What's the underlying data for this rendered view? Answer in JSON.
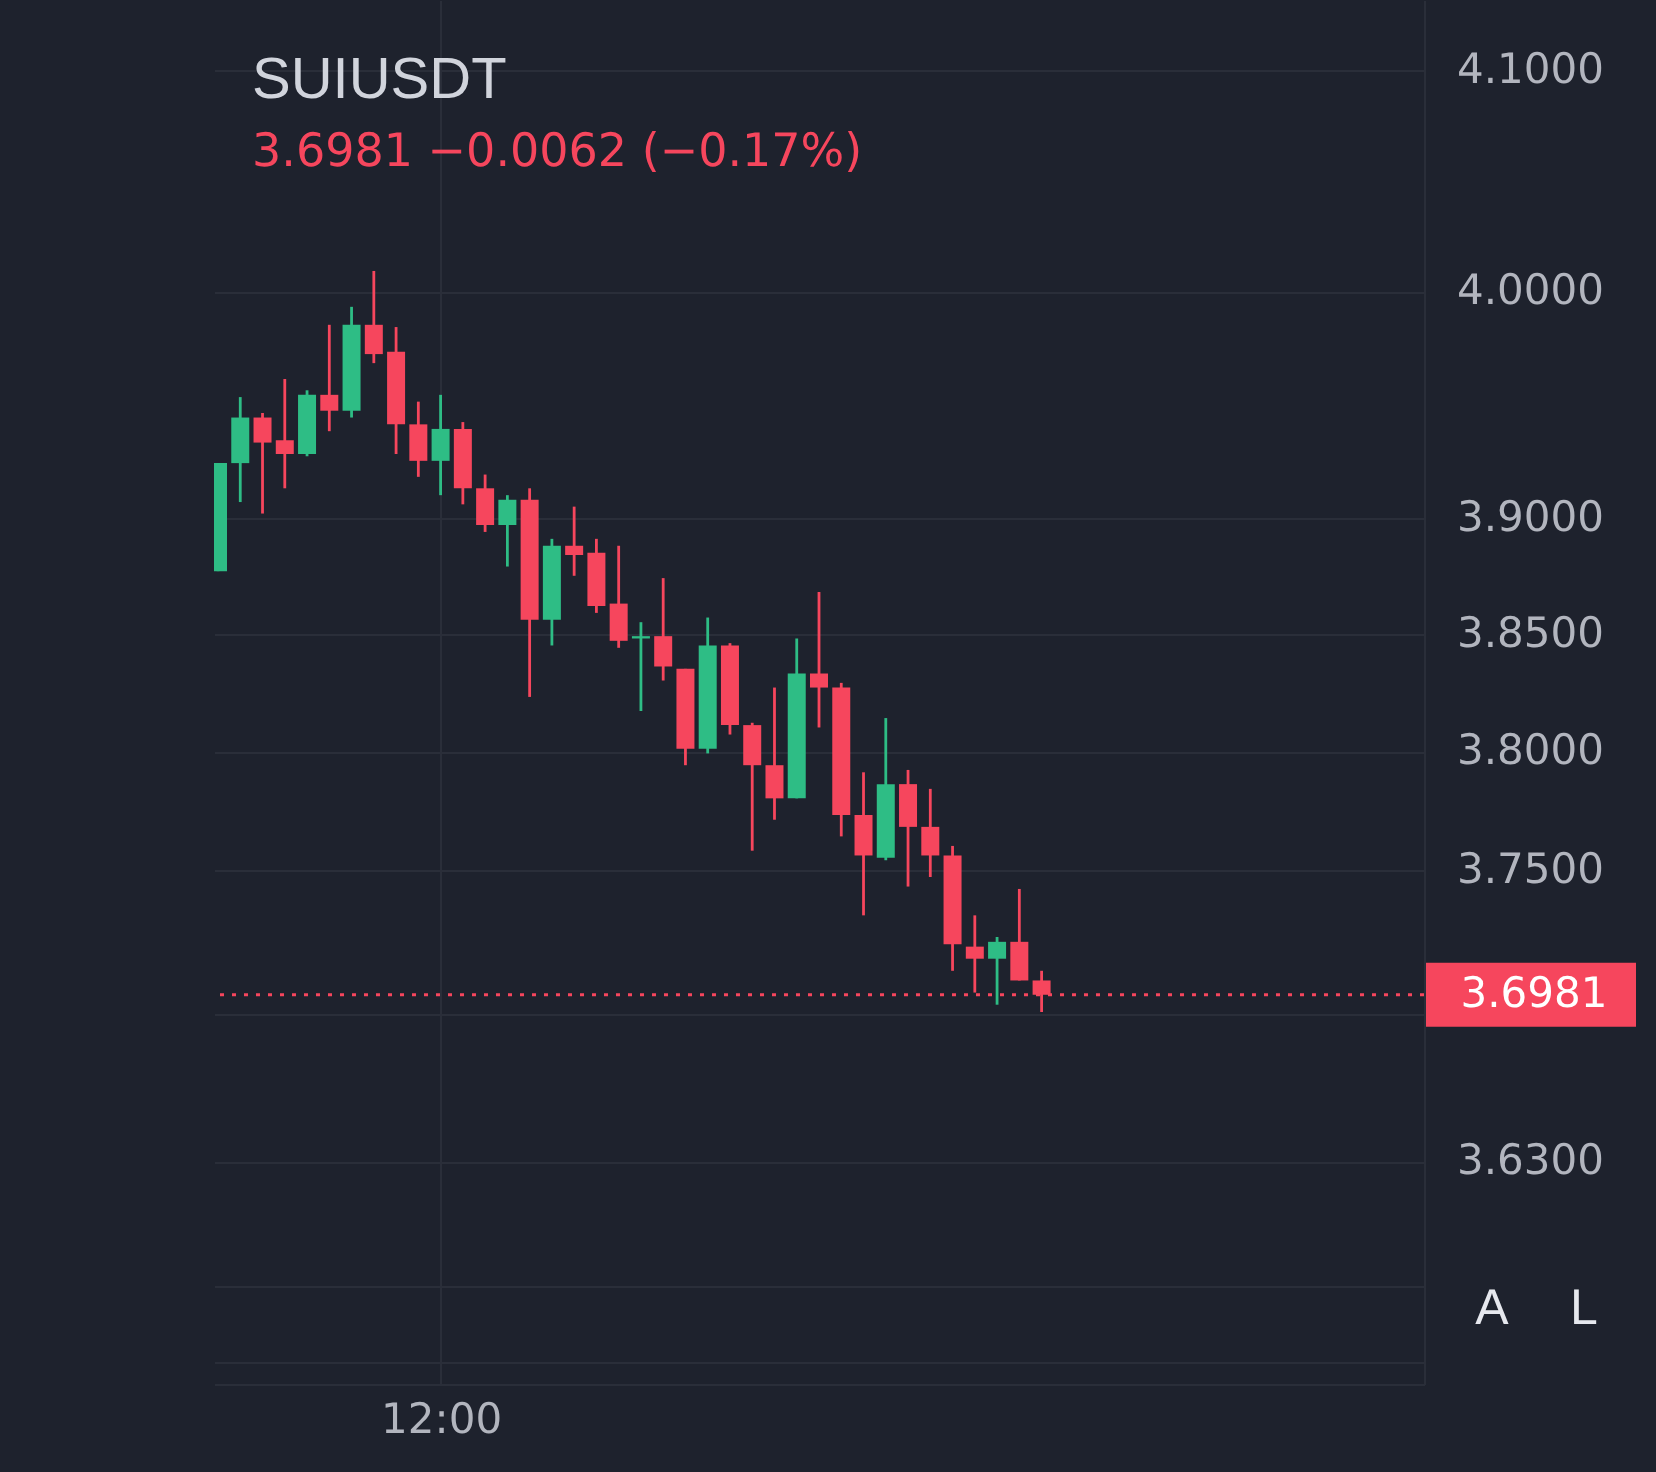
{
  "chart_data": {
    "type": "candlestick",
    "title": "SUIUSDT",
    "subtitle": "3.6981  −0.0062 (−0.17%)",
    "categories": [
      null,
      null,
      null,
      null,
      null,
      null,
      null,
      null,
      null,
      null,
      "12:00",
      null,
      null,
      null,
      null,
      null,
      null,
      null,
      null,
      null,
      null,
      null,
      null,
      null,
      null,
      null,
      null,
      null,
      null,
      null,
      null,
      null,
      null,
      null,
      null,
      null,
      null,
      null,
      null,
      null,
      null,
      null,
      null,
      null,
      null,
      null,
      null,
      null,
      null,
      null,
      null,
      null,
      null,
      null,
      null
    ],
    "ohlc": [
      [
        3.877,
        3.924,
        3.877,
        3.924
      ],
      [
        3.924,
        3.953,
        3.907,
        3.944
      ],
      [
        3.944,
        3.946,
        3.902,
        3.933
      ],
      [
        3.934,
        3.961,
        3.913,
        3.928
      ],
      [
        3.928,
        3.956,
        3.927,
        3.954
      ],
      [
        3.954,
        3.985,
        3.938,
        3.947
      ],
      [
        3.947,
        3.993,
        3.944,
        3.985
      ],
      [
        3.985,
        4.009,
        3.968,
        3.972
      ],
      [
        3.973,
        3.984,
        3.928,
        3.941
      ],
      [
        3.941,
        3.951,
        3.918,
        3.925
      ],
      [
        3.925,
        3.954,
        3.91,
        3.939
      ],
      [
        3.939,
        3.942,
        3.906,
        3.913
      ],
      [
        3.913,
        3.919,
        3.894,
        3.897
      ],
      [
        3.897,
        3.91,
        3.879,
        3.908
      ],
      [
        3.908,
        3.913,
        3.823,
        3.856
      ],
      [
        3.856,
        3.891,
        3.845,
        3.888
      ],
      [
        3.888,
        3.905,
        3.875,
        3.884
      ],
      [
        3.885,
        3.891,
        3.859,
        3.862
      ],
      [
        3.863,
        3.888,
        3.844,
        3.847
      ],
      [
        3.848,
        3.855,
        3.817,
        3.849
      ],
      [
        3.849,
        3.874,
        3.83,
        3.836
      ],
      [
        3.835,
        3.835,
        3.794,
        3.801
      ],
      [
        3.801,
        3.857,
        3.799,
        3.845
      ],
      [
        3.845,
        3.846,
        3.807,
        3.811
      ],
      [
        3.811,
        3.812,
        3.758,
        3.794
      ],
      [
        3.794,
        3.827,
        3.771,
        3.78
      ],
      [
        3.78,
        3.848,
        3.78,
        3.833
      ],
      [
        3.833,
        3.868,
        3.81,
        3.827
      ],
      [
        3.827,
        3.829,
        3.764,
        3.773
      ],
      [
        3.773,
        3.791,
        3.731,
        3.756
      ],
      [
        3.755,
        3.814,
        3.754,
        3.786
      ],
      [
        3.786,
        3.792,
        3.743,
        3.768
      ],
      [
        3.768,
        3.784,
        3.747,
        3.756
      ],
      [
        3.756,
        3.76,
        3.708,
        3.719
      ],
      [
        3.718,
        3.731,
        3.699,
        3.713
      ],
      [
        3.713,
        3.722,
        3.694,
        3.72
      ],
      [
        3.72,
        3.742,
        3.704,
        3.704
      ],
      [
        3.704,
        3.708,
        3.691,
        3.6981
      ],
      null,
      null,
      null,
      null,
      null,
      null,
      null,
      null,
      null,
      null,
      null,
      null,
      null,
      null,
      null,
      null,
      null
    ],
    "colors": [
      "#2ebd85",
      "#2ebd85",
      "#f6465d",
      "#f6465d",
      "#2ebd85",
      "#f6465d",
      "#2ebd85",
      "#f6465d",
      "#f6465d",
      "#f6465d",
      "#2ebd85",
      "#f6465d",
      "#f6465d",
      "#2ebd85",
      "#f6465d",
      "#2ebd85",
      "#f6465d",
      "#f6465d",
      "#f6465d",
      "#2ebd85",
      "#f6465d",
      "#f6465d",
      "#2ebd85",
      "#f6465d",
      "#f6465d",
      "#f6465d",
      "#2ebd85",
      "#f6465d",
      "#f6465d",
      "#f6465d",
      "#2ebd85",
      "#f6465d",
      "#f6465d",
      "#f6465d",
      "#f6465d",
      "#2ebd85",
      "#f6465d",
      "#f6465d",
      null,
      null,
      null,
      null,
      null,
      null,
      null,
      null,
      null,
      null,
      null,
      null,
      null,
      null,
      null,
      null,
      null
    ],
    "ylim": [
      3.541,
      4.132
    ],
    "yticks": [
      {
        "value": 4.1,
        "label": "4.1000"
      },
      {
        "value": 4.0,
        "label": "4.0000"
      },
      {
        "value": 3.9,
        "label": "3.9000"
      },
      {
        "value": 3.85,
        "label": "3.8500"
      },
      {
        "value": 3.8,
        "label": "3.8000"
      },
      {
        "value": 3.75,
        "label": "3.7500"
      },
      {
        "value": 3.69,
        "label": null
      },
      {
        "value": 3.63,
        "label": "3.6300"
      },
      {
        "value": 3.58,
        "label": null
      },
      {
        "value": 3.55,
        "label": null
      }
    ],
    "log": "y",
    "grid": true,
    "ref_lines": [
      {
        "axis": "y",
        "value": 3.6981,
        "label": "3.6981",
        "color": "#f6465d",
        "line_style": "dotted"
      }
    ],
    "annotations": [
      "A",
      "L"
    ]
  }
}
